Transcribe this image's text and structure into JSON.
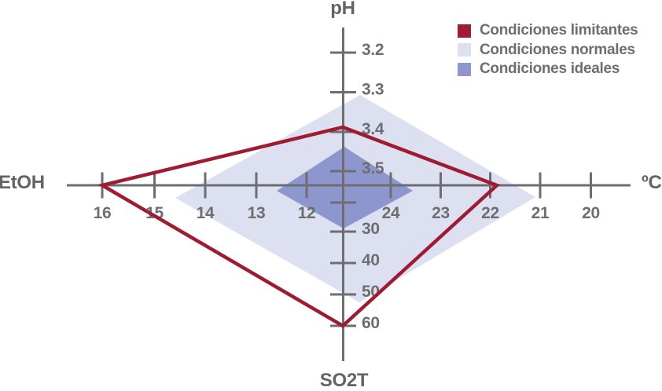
{
  "chart_data": {
    "type": "radar",
    "title": "",
    "background": "#FFFFFF",
    "grid": false,
    "legend_position": "top-right",
    "axes": [
      {
        "label": "pH",
        "direction": "up",
        "tick_labels": [
          "3.2",
          "3.3",
          "3.4",
          "3.5"
        ],
        "unlabeled_ticks_near_center": 0
      },
      {
        "label": "ºC",
        "direction": "right",
        "tick_labels": [
          "24",
          "23",
          "22",
          "21",
          "20"
        ],
        "unlabeled_ticks_near_center": 0
      },
      {
        "label": "SO2T",
        "direction": "down",
        "tick_labels": [
          "30",
          "40",
          "50",
          "60"
        ],
        "unlabeled_ticks_near_center": 1
      },
      {
        "label": "EtOH",
        "direction": "left",
        "tick_labels": [
          "16",
          "15",
          "14",
          "13",
          "12"
        ],
        "unlabeled_ticks_near_center": 0
      }
    ],
    "series": [
      {
        "name": "Condiciones limitantes",
        "render": "outline",
        "color": "#9E1C32",
        "values": {
          "pH": 3.4,
          "C": 22,
          "SO2T": 60,
          "EtOH": 16
        }
      },
      {
        "name": "Condiciones normales",
        "render": "filled",
        "color": "#DDE0F0",
        "values": {
          "pH": 3.3,
          "C": 21,
          "SO2T": 52,
          "EtOH": 14.6
        }
      },
      {
        "name": "Condiciones ideales",
        "render": "filled",
        "color": "#8D97CD",
        "values": {
          "pH": 3.45,
          "C": 23.6,
          "SO2T": 30,
          "EtOH": 12.6
        }
      }
    ]
  },
  "axis_labels": {
    "top": "pH",
    "right": "ºC",
    "bottom": "SO2T",
    "left": "EtOH"
  },
  "legend": {
    "items": [
      {
        "label": "Condiciones limitantes",
        "color": "#9E1C32"
      },
      {
        "label": "Condiciones normales",
        "color": "#DDE0F0"
      },
      {
        "label": "Condiciones ideales",
        "color": "#8D97CD"
      }
    ]
  },
  "colors": {
    "axis": "#6D6E71",
    "tick_text": "#6D6E70",
    "axis_label_text": "#636467",
    "legend_text": "#6D6E70",
    "background": "#FFFFFF"
  }
}
